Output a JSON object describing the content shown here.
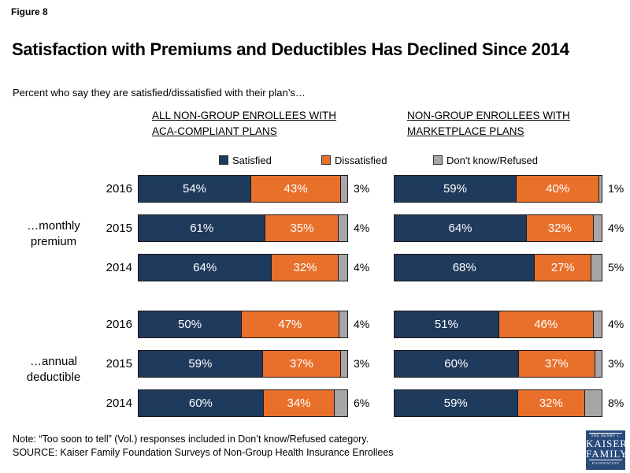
{
  "figure_label": "Figure 8",
  "title": "Satisfaction with Premiums and Deductibles Has Declined Since 2014",
  "subtitle": "Percent who say they are satisfied/dissatisfied with their plan’s…",
  "note": "Note: “Too soon to tell” (Vol.) responses included in Don’t know/Refused category.",
  "source": "SOURCE: Kaiser Family Foundation Surveys of Non-Group Health Insurance Enrollees",
  "logo": {
    "line1": "THE HENRY J.",
    "line2": "KAISER",
    "line3": "FAMILY",
    "line4": "FOUNDATION"
  },
  "colors": {
    "satisfied": "#1e3a5c",
    "dissatisfied": "#e8702b",
    "dont_know": "#a6a6a6",
    "segment_border": "#1a1a1a",
    "logo_background": "#2a4b7c"
  },
  "chart_data": {
    "type": "bar",
    "orientation": "horizontal",
    "stacked": true,
    "unit": "%",
    "legend": [
      "Satisfied",
      "Dissatisfied",
      "Don't know/Refused"
    ],
    "row_group_labels": [
      "…monthly premium",
      "…annual deductible"
    ],
    "panels": [
      {
        "header": [
          "ALL NON-GROUP ENROLLEES WITH",
          "ACA-COMPLIANT PLANS"
        ],
        "groups": [
          {
            "label": "…monthly premium",
            "rows": [
              {
                "year": "2016",
                "satisfied": 54,
                "dissatisfied": 43,
                "dont_know": 3
              },
              {
                "year": "2015",
                "satisfied": 61,
                "dissatisfied": 35,
                "dont_know": 4
              },
              {
                "year": "2014",
                "satisfied": 64,
                "dissatisfied": 32,
                "dont_know": 4
              }
            ]
          },
          {
            "label": "…annual deductible",
            "rows": [
              {
                "year": "2016",
                "satisfied": 50,
                "dissatisfied": 47,
                "dont_know": 4
              },
              {
                "year": "2015",
                "satisfied": 59,
                "dissatisfied": 37,
                "dont_know": 3
              },
              {
                "year": "2014",
                "satisfied": 60,
                "dissatisfied": 34,
                "dont_know": 6
              }
            ]
          }
        ]
      },
      {
        "header": [
          "NON-GROUP ENROLLEES WITH",
          "MARKETPLACE PLANS"
        ],
        "groups": [
          {
            "label": "…monthly premium",
            "rows": [
              {
                "year": "2016",
                "satisfied": 59,
                "dissatisfied": 40,
                "dont_know": 1
              },
              {
                "year": "2015",
                "satisfied": 64,
                "dissatisfied": 32,
                "dont_know": 4
              },
              {
                "year": "2014",
                "satisfied": 68,
                "dissatisfied": 27,
                "dont_know": 5
              }
            ]
          },
          {
            "label": "…annual deductible",
            "rows": [
              {
                "year": "2016",
                "satisfied": 51,
                "dissatisfied": 46,
                "dont_know": 4
              },
              {
                "year": "2015",
                "satisfied": 60,
                "dissatisfied": 37,
                "dont_know": 3
              },
              {
                "year": "2014",
                "satisfied": 59,
                "dissatisfied": 32,
                "dont_know": 8
              }
            ]
          }
        ]
      }
    ]
  }
}
